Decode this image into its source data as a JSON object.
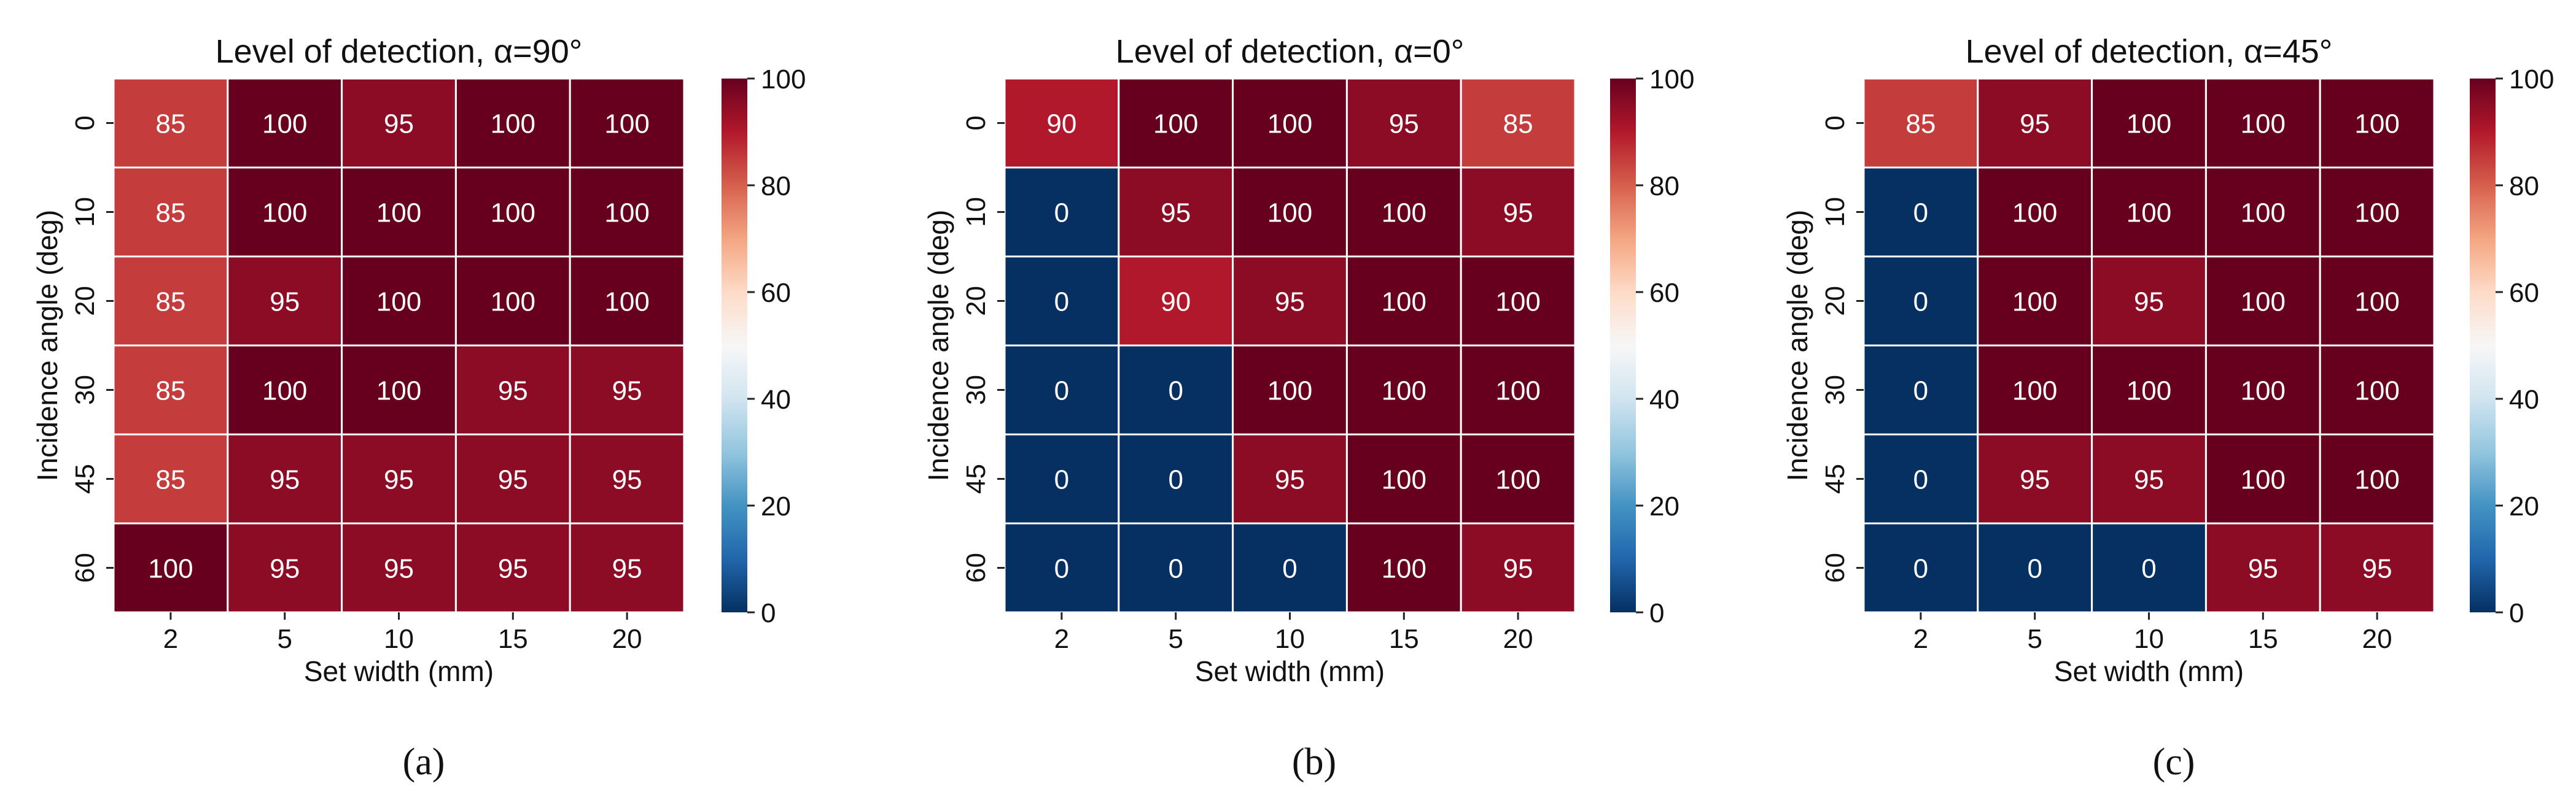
{
  "chart_data": [
    {
      "type": "heatmap",
      "title": "Level of detection, α=90°",
      "xlabel": "Set width (mm)",
      "ylabel": "Incidence angle (deg)",
      "x_categories": [
        "2",
        "5",
        "10",
        "15",
        "20"
      ],
      "y_categories": [
        "0",
        "10",
        "20",
        "30",
        "45",
        "60"
      ],
      "values": [
        [
          85,
          100,
          95,
          100,
          100
        ],
        [
          85,
          100,
          100,
          100,
          100
        ],
        [
          85,
          95,
          100,
          100,
          100
        ],
        [
          85,
          100,
          100,
          95,
          95
        ],
        [
          85,
          95,
          95,
          95,
          95
        ],
        [
          100,
          95,
          95,
          95,
          95
        ]
      ],
      "colorbar": {
        "min": 0,
        "max": 100,
        "ticks": [
          "0",
          "20",
          "40",
          "60",
          "80",
          "100"
        ],
        "colormap": "RdBu_r"
      },
      "caption": "(a)"
    },
    {
      "type": "heatmap",
      "title": "Level of detection, α=0°",
      "xlabel": "Set width (mm)",
      "ylabel": "Incidence angle (deg)",
      "x_categories": [
        "2",
        "5",
        "10",
        "15",
        "20"
      ],
      "y_categories": [
        "0",
        "10",
        "20",
        "30",
        "45",
        "60"
      ],
      "values": [
        [
          90,
          100,
          100,
          95,
          85
        ],
        [
          0,
          95,
          100,
          100,
          95
        ],
        [
          0,
          90,
          95,
          100,
          100
        ],
        [
          0,
          0,
          100,
          100,
          100
        ],
        [
          0,
          0,
          95,
          100,
          100
        ],
        [
          0,
          0,
          0,
          100,
          95
        ]
      ],
      "colorbar": {
        "min": 0,
        "max": 100,
        "ticks": [
          "0",
          "20",
          "40",
          "60",
          "80",
          "100"
        ],
        "colormap": "RdBu_r"
      },
      "caption": "(b)"
    },
    {
      "type": "heatmap",
      "title": "Level of detection, α=45°",
      "xlabel": "Set width (mm)",
      "ylabel": "Incidence angle (deg)",
      "x_categories": [
        "2",
        "5",
        "10",
        "15",
        "20"
      ],
      "y_categories": [
        "0",
        "10",
        "20",
        "30",
        "45",
        "60"
      ],
      "values": [
        [
          85,
          95,
          100,
          100,
          100
        ],
        [
          0,
          100,
          100,
          100,
          100
        ],
        [
          0,
          100,
          95,
          100,
          100
        ],
        [
          0,
          100,
          100,
          100,
          100
        ],
        [
          0,
          95,
          95,
          100,
          100
        ],
        [
          0,
          0,
          0,
          95,
          95
        ]
      ],
      "colorbar": {
        "min": 0,
        "max": 100,
        "ticks": [
          "0",
          "20",
          "40",
          "60",
          "80",
          "100"
        ],
        "colormap": "RdBu_r"
      },
      "caption": "(c)"
    }
  ]
}
